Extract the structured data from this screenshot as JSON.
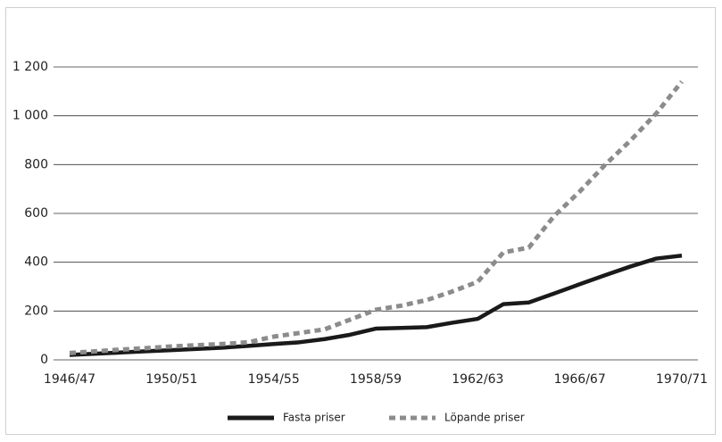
{
  "chart_data": {
    "type": "line",
    "categories": [
      "1946/47",
      null,
      null,
      null,
      "1950/51",
      null,
      null,
      null,
      "1954/55",
      null,
      null,
      null,
      "1958/59",
      null,
      null,
      null,
      "1962/63",
      null,
      null,
      null,
      "1966/67",
      null,
      null,
      null,
      "1970/71"
    ],
    "series": [
      {
        "name": "Fasta priser",
        "color": "#1a1a1a",
        "dash": false,
        "values": [
          20,
          25,
          30,
          35,
          40,
          45,
          50,
          57,
          65,
          72,
          85,
          103,
          128,
          131,
          134,
          152,
          168,
          228,
          235,
          272,
          310,
          347,
          383,
          415,
          427
        ]
      },
      {
        "name": "Löpande priser",
        "color": "#8c8c8c",
        "dash": true,
        "values": [
          28,
          35,
          42,
          48,
          55,
          60,
          65,
          72,
          95,
          110,
          125,
          165,
          205,
          222,
          245,
          280,
          320,
          440,
          460,
          590,
          690,
          800,
          900,
          1010,
          1140
        ]
      }
    ],
    "ylim": [
      0,
      1200
    ],
    "yticks": [
      0,
      200,
      400,
      600,
      800,
      {
        "value": 1000,
        "label": "1 000"
      },
      {
        "value": 1200,
        "label": "1 200"
      }
    ],
    "grid": true,
    "legend": "bottom"
  }
}
